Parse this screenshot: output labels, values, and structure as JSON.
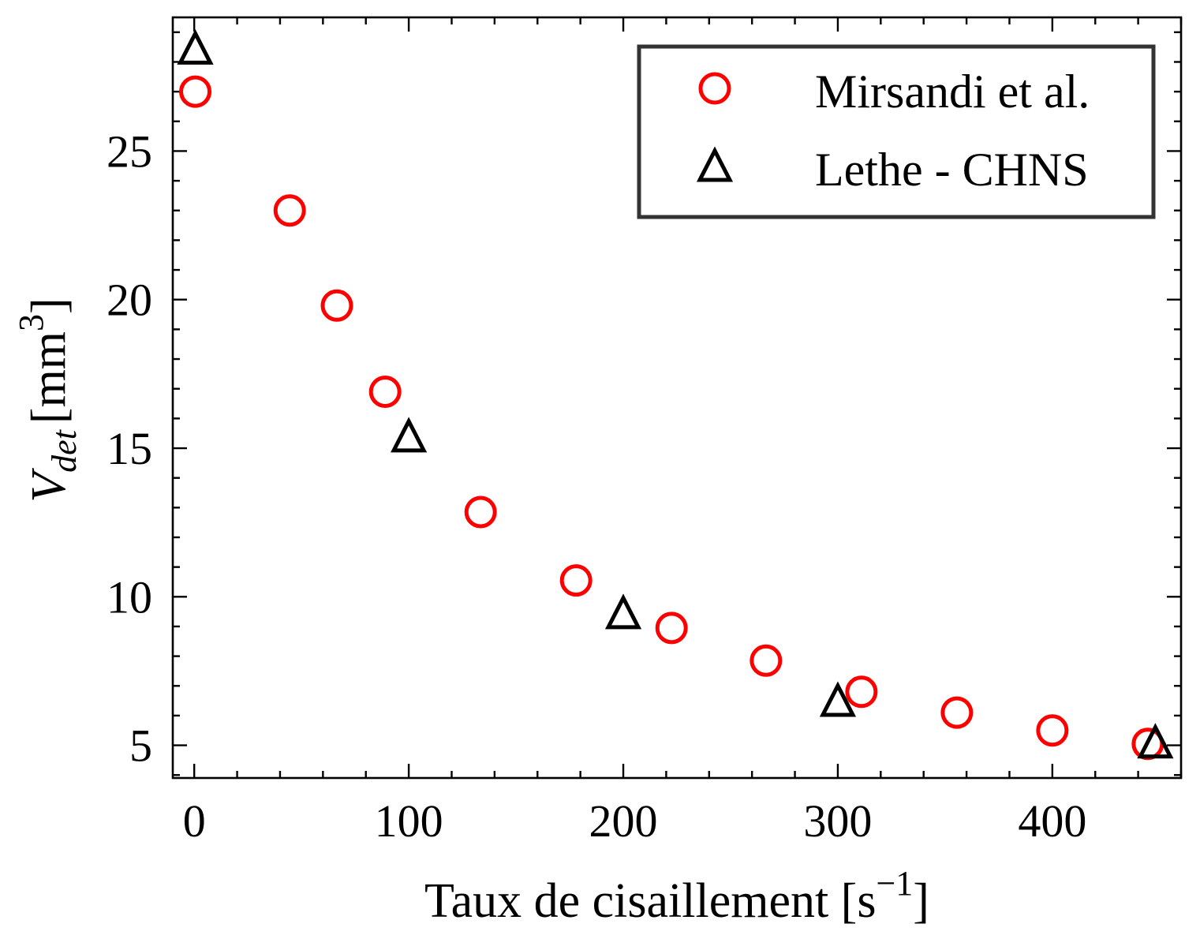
{
  "chart_data": {
    "type": "scatter",
    "xlabel_main": "Taux de cisaillement  [s",
    "xlabel_sup": "−1",
    "xlabel_close": "]",
    "ylabel_main": "V",
    "ylabel_sub": "det",
    "ylabel_unit": "[mm",
    "ylabel_sup": "3",
    "ylabel_close": "]",
    "xlim": [
      -10,
      460
    ],
    "ylim": [
      3.9,
      29.5
    ],
    "xticks": [
      0,
      100,
      200,
      300,
      400
    ],
    "yticks": [
      5,
      10,
      15,
      20,
      25
    ],
    "x_minor_step": 20,
    "y_minor_step": 1,
    "legend_position": "upper-right",
    "series": [
      {
        "name": "Mirsandi et al.",
        "marker": "circle",
        "color": "#ff0000",
        "points": [
          [
            0.5,
            27.0
          ],
          [
            44.5,
            23.0
          ],
          [
            66.5,
            19.8
          ],
          [
            89.0,
            16.9
          ],
          [
            133.5,
            12.85
          ],
          [
            178.0,
            10.55
          ],
          [
            222.5,
            8.95
          ],
          [
            266.5,
            7.85
          ],
          [
            311.0,
            6.8
          ],
          [
            355.5,
            6.1
          ],
          [
            400.0,
            5.5
          ],
          [
            444.5,
            5.05
          ]
        ]
      },
      {
        "name": "Lethe - CHNS",
        "marker": "triangle",
        "color": "#000000",
        "points": [
          [
            0.5,
            28.4
          ],
          [
            100.0,
            15.35
          ],
          [
            200.0,
            9.4
          ],
          [
            300.0,
            6.45
          ],
          [
            448.0,
            5.05
          ]
        ]
      }
    ]
  }
}
